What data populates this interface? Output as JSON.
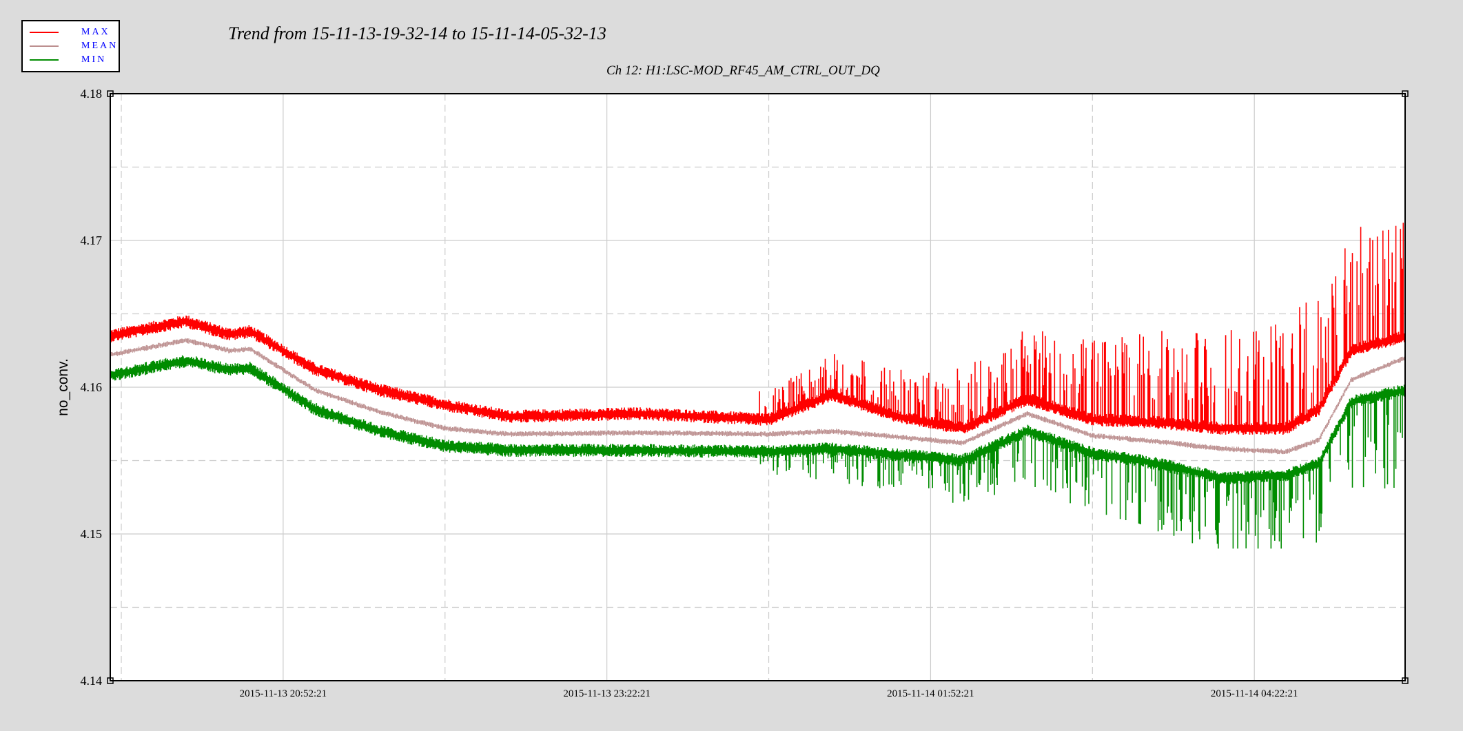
{
  "legend": {
    "items": [
      {
        "label": "MAX",
        "color": "#ff0000"
      },
      {
        "label": "MEAN",
        "color": "#bc8f8f"
      },
      {
        "label": "MIN",
        "color": "#008c00"
      }
    ]
  },
  "title": "Trend from 15-11-13-19-32-14 to 15-11-14-05-32-13",
  "subtitle": "Ch 12: H1:LSC-MOD_RF45_AM_CTRL_OUT_DQ",
  "chart_data": {
    "type": "line",
    "title": "Trend from 15-11-13-19-32-14 to 15-11-14-05-32-13",
    "subtitle": "Ch 12: H1:LSC-MOD_RF45_AM_CTRL_OUT_DQ",
    "xlabel": "",
    "ylabel": "no_conv.",
    "xlim": [
      "2015-11-13 19:32:14",
      "2015-11-14 05:32:13"
    ],
    "ylim": [
      4.14,
      4.18
    ],
    "y_ticks": [
      "4.14",
      "4.15",
      "4.16",
      "4.17",
      "4.18"
    ],
    "x_ticks": [
      "2015-11-13 20:52:21",
      "2015-11-13 23:22:21",
      "2015-11-14 01:52:21",
      "2015-11-14 04:22:21"
    ],
    "grid": true,
    "legend_position": "top-left",
    "x": [
      "2015-11-13 19:32:14",
      "2015-11-13 20:07:14",
      "2015-11-13 20:27:14",
      "2015-11-13 20:37:14",
      "2015-11-13 21:07:14",
      "2015-11-13 21:37:14",
      "2015-11-13 22:07:14",
      "2015-11-13 22:37:14",
      "2015-11-13 23:37:14",
      "2015-11-14 00:37:14",
      "2015-11-14 01:07:14",
      "2015-11-14 01:37:14",
      "2015-11-14 02:07:14",
      "2015-11-14 02:37:14",
      "2015-11-14 03:07:14",
      "2015-11-14 03:37:14",
      "2015-11-14 04:07:14",
      "2015-11-14 04:37:14",
      "2015-11-14 04:52:14",
      "2015-11-14 05:07:14",
      "2015-11-14 05:32:13"
    ],
    "series": [
      {
        "name": "MAX",
        "color": "#ff0000",
        "values": [
          4.1635,
          4.1645,
          4.1636,
          4.1638,
          4.1612,
          4.1598,
          4.1588,
          4.158,
          4.1582,
          4.1578,
          4.1595,
          4.158,
          4.1572,
          4.1592,
          4.1578,
          4.1576,
          4.1572,
          4.1572,
          4.1585,
          4.1625,
          4.1635
        ],
        "spike_max": 4.1728
      },
      {
        "name": "MEAN",
        "color": "#bc8f8f",
        "values": [
          4.1622,
          4.1632,
          4.1625,
          4.1626,
          4.1598,
          4.1583,
          4.1572,
          4.1568,
          4.1569,
          4.1568,
          4.157,
          4.1566,
          4.1562,
          4.1582,
          4.1567,
          4.1563,
          4.1558,
          4.1556,
          4.1564,
          4.1605,
          4.162
        ]
      },
      {
        "name": "MIN",
        "color": "#008c00",
        "values": [
          4.1608,
          4.1618,
          4.1612,
          4.1613,
          4.1585,
          4.157,
          4.156,
          4.1557,
          4.1557,
          4.1556,
          4.1558,
          4.1554,
          4.155,
          4.157,
          4.1555,
          4.1548,
          4.1538,
          4.154,
          4.1548,
          4.159,
          4.1598
        ],
        "spike_min": 4.149
      }
    ]
  }
}
